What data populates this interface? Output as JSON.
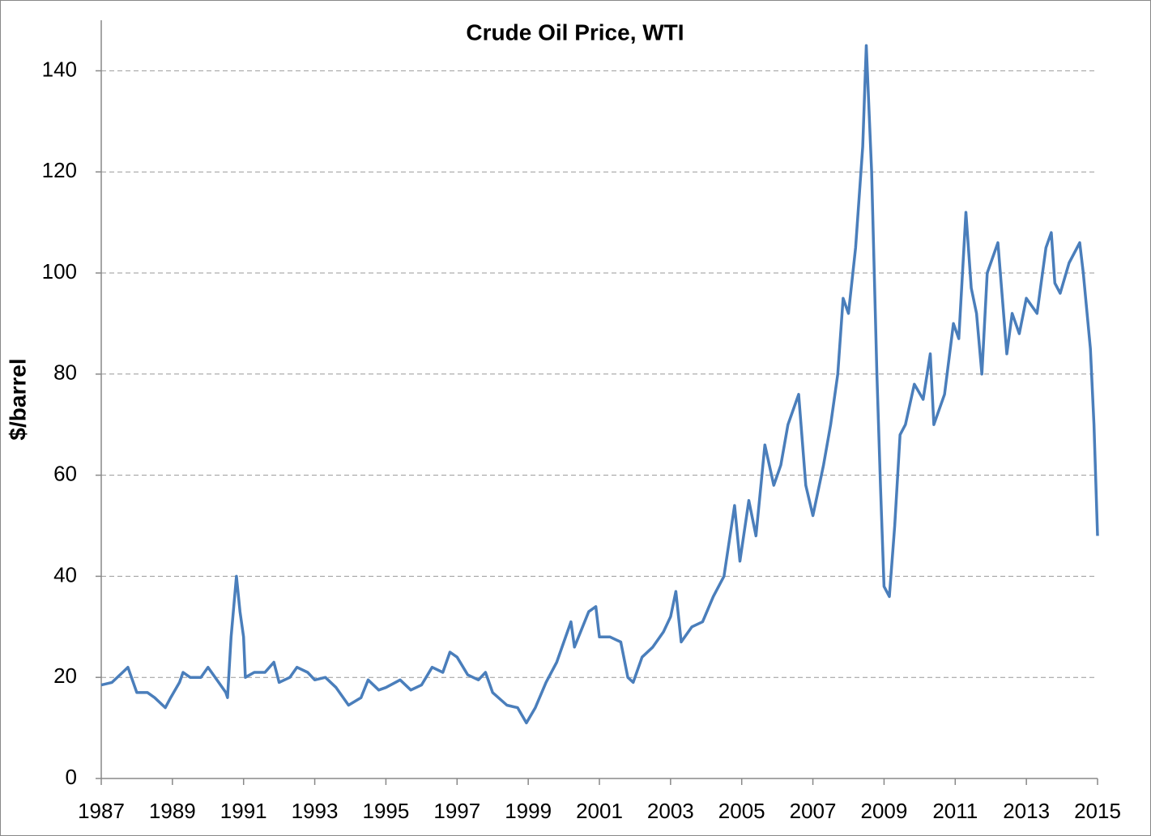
{
  "chart_data": {
    "type": "line",
    "title": "Crude Oil Price, WTI",
    "y_label": "$/barrel",
    "xlim": [
      1987,
      2015
    ],
    "xticks": [
      1987,
      1989,
      1991,
      1993,
      1995,
      1997,
      1999,
      2001,
      2003,
      2005,
      2007,
      2009,
      2011,
      2013,
      2015
    ],
    "ylim": [
      0,
      150
    ],
    "yticks": [
      0,
      20,
      40,
      60,
      80,
      100,
      120,
      140
    ],
    "grid": true,
    "series": [
      {
        "name": "WTI",
        "color": "#4a7ebb",
        "x": [
          1987.0,
          1987.3,
          1987.6,
          1987.75,
          1988.0,
          1988.3,
          1988.5,
          1988.8,
          1988.95,
          1989.2,
          1989.3,
          1989.5,
          1989.8,
          1990.0,
          1990.3,
          1990.5,
          1990.55,
          1990.65,
          1990.8,
          1990.9,
          1991.0,
          1991.05,
          1991.3,
          1991.6,
          1991.85,
          1992.0,
          1992.3,
          1992.5,
          1992.8,
          1993.0,
          1993.3,
          1993.6,
          1993.95,
          1994.3,
          1994.5,
          1994.8,
          1995.0,
          1995.4,
          1995.7,
          1996.0,
          1996.3,
          1996.6,
          1996.8,
          1997.0,
          1997.3,
          1997.6,
          1997.8,
          1998.0,
          1998.4,
          1998.7,
          1998.95,
          1999.2,
          1999.5,
          1999.8,
          2000.0,
          2000.2,
          2000.3,
          2000.7,
          2000.9,
          2001.0,
          2001.3,
          2001.6,
          2001.8,
          2001.95,
          2002.2,
          2002.5,
          2002.8,
          2003.0,
          2003.15,
          2003.3,
          2003.6,
          2003.9,
          2004.2,
          2004.5,
          2004.8,
          2004.95,
          2005.2,
          2005.4,
          2005.65,
          2005.9,
          2006.1,
          2006.3,
          2006.6,
          2006.8,
          2007.0,
          2007.3,
          2007.5,
          2007.7,
          2007.85,
          2008.0,
          2008.2,
          2008.4,
          2008.5,
          2008.65,
          2008.8,
          2008.9,
          2009.0,
          2009.15,
          2009.3,
          2009.45,
          2009.6,
          2009.85,
          2010.1,
          2010.3,
          2010.4,
          2010.7,
          2010.95,
          2011.1,
          2011.3,
          2011.45,
          2011.6,
          2011.75,
          2011.9,
          2012.2,
          2012.45,
          2012.6,
          2012.8,
          2013.0,
          2013.3,
          2013.55,
          2013.7,
          2013.8,
          2013.95,
          2014.2,
          2014.5,
          2014.6,
          2014.8,
          2014.9,
          2015.0
        ],
        "values": [
          18.5,
          19,
          21,
          22,
          17,
          17,
          16,
          14,
          16,
          19,
          21,
          20,
          20,
          22,
          19,
          17,
          16,
          28,
          40,
          33,
          28,
          20,
          21,
          21,
          23,
          19,
          20,
          22,
          21,
          19.5,
          20,
          18,
          14.5,
          16,
          19.5,
          17.5,
          18,
          19.5,
          17.5,
          18.5,
          22,
          21,
          25,
          24,
          20.5,
          19.5,
          21,
          17,
          14.5,
          14,
          11,
          14,
          19,
          23,
          27,
          31,
          26,
          33,
          34,
          28,
          28,
          27,
          20,
          19,
          24,
          26,
          29,
          32,
          37,
          27,
          30,
          31,
          36,
          40,
          54,
          43,
          55,
          48,
          66,
          58,
          62,
          70,
          76,
          58,
          52,
          62,
          70,
          80,
          95,
          92,
          105,
          125,
          145,
          120,
          80,
          58,
          38,
          36,
          50,
          68,
          70,
          78,
          75,
          84,
          70,
          76,
          90,
          87,
          112,
          97,
          92,
          80,
          100,
          106,
          84,
          92,
          88,
          95,
          92,
          105,
          108,
          98,
          96,
          102,
          106,
          100,
          85,
          70,
          48
        ]
      }
    ]
  }
}
